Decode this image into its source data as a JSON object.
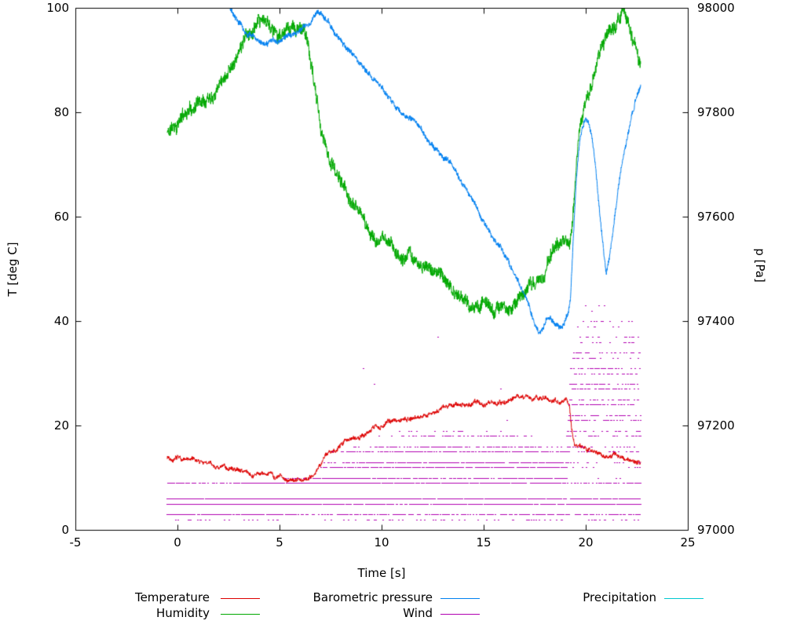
{
  "chart_data": {
    "type": "line",
    "title": "",
    "xlabel": "Time [s]",
    "ylabel_left": "T [deg C]",
    "ylabel_right": "p [Pa]",
    "x_range": [
      -5,
      25
    ],
    "y_left_range": [
      0,
      100
    ],
    "y_right_range": [
      97000,
      98000
    ],
    "x_ticks": [
      -5,
      0,
      5,
      10,
      15,
      20,
      25
    ],
    "y_left_ticks": [
      0,
      20,
      40,
      60,
      80,
      100
    ],
    "y_right_ticks": [
      97000,
      97200,
      97400,
      97600,
      97800,
      98000
    ],
    "grid": false,
    "legend_position": "bottom",
    "series": [
      {
        "name": "Temperature",
        "color": "#dd0000",
        "axis": "left",
        "style": "line",
        "seed": 7,
        "noise_jitter": 0.6,
        "noise_walk": 0.35,
        "noise_damp": 0.98,
        "points": [
          [
            -0.5,
            14.0
          ],
          [
            0,
            13.8
          ],
          [
            0.5,
            13.4
          ],
          [
            1,
            13.0
          ],
          [
            1.5,
            12.5
          ],
          [
            2,
            12.1
          ],
          [
            2.5,
            11.8
          ],
          [
            3,
            11.4
          ],
          [
            3.5,
            11.1
          ],
          [
            4,
            10.8
          ],
          [
            4.5,
            10.4
          ],
          [
            5,
            10.1
          ],
          [
            5.5,
            9.9
          ],
          [
            6,
            9.8
          ],
          [
            6.4,
            10.0
          ],
          [
            6.7,
            11.2
          ],
          [
            7,
            12.8
          ],
          [
            7.3,
            14.3
          ],
          [
            7.6,
            15.4
          ],
          [
            8,
            16.6
          ],
          [
            8.4,
            17.6
          ],
          [
            8.8,
            18.4
          ],
          [
            9.2,
            19.2
          ],
          [
            9.6,
            19.8
          ],
          [
            10,
            20.2
          ],
          [
            10.5,
            20.9
          ],
          [
            11,
            21.4
          ],
          [
            11.5,
            21.9
          ],
          [
            12,
            22.3
          ],
          [
            12.5,
            22.8
          ],
          [
            13,
            23.2
          ],
          [
            13.5,
            23.7
          ],
          [
            14,
            24.1
          ],
          [
            14.5,
            24.4
          ],
          [
            15,
            24.7
          ],
          [
            15.5,
            25.0
          ],
          [
            16,
            25.2
          ],
          [
            16.5,
            25.1
          ],
          [
            17,
            25.0
          ],
          [
            17.5,
            25.2
          ],
          [
            18,
            25.1
          ],
          [
            18.5,
            24.9
          ],
          [
            19,
            24.2
          ],
          [
            19.2,
            23.5
          ],
          [
            19.3,
            20.0
          ],
          [
            19.45,
            17.0
          ],
          [
            19.6,
            16.2
          ],
          [
            20,
            15.4
          ],
          [
            20.5,
            15.0
          ],
          [
            21,
            14.6
          ],
          [
            21.5,
            14.2
          ],
          [
            22,
            13.8
          ],
          [
            22.7,
            13.4
          ]
        ]
      },
      {
        "name": "Humidity",
        "color": "#00a800",
        "axis": "left",
        "style": "line",
        "seed": 11,
        "noise_jitter": 2.0,
        "noise_walk": 0.8,
        "noise_damp": 0.97,
        "points": [
          [
            -0.5,
            76
          ],
          [
            0,
            78
          ],
          [
            0.5,
            80.5
          ],
          [
            1,
            82.5
          ],
          [
            1.5,
            84.5
          ],
          [
            2,
            87
          ],
          [
            2.5,
            89.5
          ],
          [
            3,
            92
          ],
          [
            3.4,
            94.5
          ],
          [
            3.8,
            95.5
          ],
          [
            4.2,
            96.5
          ],
          [
            4.6,
            96
          ],
          [
            5,
            95.2
          ],
          [
            5.4,
            94.8
          ],
          [
            5.8,
            95.2
          ],
          [
            6.1,
            95.5
          ],
          [
            6.3,
            94
          ],
          [
            6.5,
            90
          ],
          [
            6.7,
            85
          ],
          [
            6.9,
            80
          ],
          [
            7.1,
            76
          ],
          [
            7.4,
            72
          ],
          [
            7.7,
            69.5
          ],
          [
            8,
            67
          ],
          [
            8.4,
            63.5
          ],
          [
            8.8,
            61
          ],
          [
            9.2,
            58.5
          ],
          [
            9.6,
            56.5
          ],
          [
            10,
            54.5
          ],
          [
            10.4,
            55
          ],
          [
            10.8,
            53
          ],
          [
            11.2,
            52
          ],
          [
            11.6,
            51.5
          ],
          [
            12,
            50.5
          ],
          [
            12.4,
            49.5
          ],
          [
            12.8,
            48.5
          ],
          [
            13.2,
            47.5
          ],
          [
            13.6,
            46
          ],
          [
            14,
            44.5
          ],
          [
            14.5,
            43
          ],
          [
            15,
            42
          ],
          [
            15.5,
            41.5
          ],
          [
            16,
            42.5
          ],
          [
            16.5,
            44
          ],
          [
            17,
            46
          ],
          [
            17.4,
            47
          ],
          [
            17.8,
            48
          ],
          [
            18.2,
            51
          ],
          [
            18.6,
            53.5
          ],
          [
            19,
            54.5
          ],
          [
            19.2,
            54
          ],
          [
            19.35,
            58
          ],
          [
            19.5,
            66
          ],
          [
            19.7,
            76
          ],
          [
            19.9,
            82
          ],
          [
            20.1,
            85
          ],
          [
            20.4,
            87.5
          ],
          [
            20.7,
            90.5
          ],
          [
            21,
            94
          ],
          [
            21.3,
            96.5
          ],
          [
            21.6,
            98
          ],
          [
            21.9,
            98.8
          ],
          [
            22.1,
            96.5
          ],
          [
            22.3,
            93
          ],
          [
            22.5,
            90.5
          ],
          [
            22.7,
            88.5
          ]
        ]
      },
      {
        "name": "Barometric pressure",
        "color": "#0080f0",
        "axis": "right",
        "style": "line",
        "seed": 23,
        "noise_jitter": 8,
        "noise_walk": 3,
        "noise_damp": 0.975,
        "points": [
          [
            -0.5,
            98060
          ],
          [
            1.5,
            98030
          ],
          [
            2.4,
            98010
          ],
          [
            2.7,
            97995
          ],
          [
            3,
            97975
          ],
          [
            3.3,
            97955
          ],
          [
            3.6,
            97945
          ],
          [
            4,
            97938
          ],
          [
            4.4,
            97932
          ],
          [
            4.8,
            97934
          ],
          [
            5.2,
            97942
          ],
          [
            5.6,
            97950
          ],
          [
            6,
            97962
          ],
          [
            6.4,
            97975
          ],
          [
            6.7,
            97988
          ],
          [
            6.9,
            97992
          ],
          [
            7.1,
            97985
          ],
          [
            7.4,
            97972
          ],
          [
            7.7,
            97958
          ],
          [
            8,
            97942
          ],
          [
            8.4,
            97922
          ],
          [
            8.8,
            97902
          ],
          [
            9.2,
            97885
          ],
          [
            9.6,
            97868
          ],
          [
            10,
            97850
          ],
          [
            10.4,
            97828
          ],
          [
            10.7,
            97808
          ],
          [
            11,
            97800
          ],
          [
            11.4,
            97792
          ],
          [
            11.8,
            97775
          ],
          [
            12.2,
            97752
          ],
          [
            12.6,
            97735
          ],
          [
            13,
            97715
          ],
          [
            13.4,
            97698
          ],
          [
            13.8,
            97672
          ],
          [
            14.2,
            97650
          ],
          [
            14.6,
            97618
          ],
          [
            15,
            97592
          ],
          [
            15.4,
            97565
          ],
          [
            15.8,
            97542
          ],
          [
            16.2,
            97512
          ],
          [
            16.6,
            97482
          ],
          [
            17,
            97448
          ],
          [
            17.3,
            97415
          ],
          [
            17.5,
            97392
          ],
          [
            17.7,
            97375
          ],
          [
            17.9,
            97382
          ],
          [
            18.1,
            97398
          ],
          [
            18.3,
            97403
          ],
          [
            18.5,
            97392
          ],
          [
            18.7,
            97385
          ],
          [
            18.9,
            97392
          ],
          [
            19.1,
            97408
          ],
          [
            19.25,
            97440
          ],
          [
            19.4,
            97560
          ],
          [
            19.55,
            97670
          ],
          [
            19.7,
            97740
          ],
          [
            19.85,
            97772
          ],
          [
            20,
            97782
          ],
          [
            20.15,
            97775
          ],
          [
            20.3,
            97745
          ],
          [
            20.5,
            97680
          ],
          [
            20.7,
            97595
          ],
          [
            20.9,
            97520
          ],
          [
            21,
            97490
          ],
          [
            21.1,
            97505
          ],
          [
            21.3,
            97560
          ],
          [
            21.5,
            97625
          ],
          [
            21.7,
            97685
          ],
          [
            21.9,
            97728
          ],
          [
            22.1,
            97765
          ],
          [
            22.3,
            97800
          ],
          [
            22.5,
            97832
          ],
          [
            22.7,
            97852
          ]
        ]
      },
      {
        "name": "Wind",
        "color": "#b000b0",
        "axis": "left",
        "style": "dots",
        "seed": 5,
        "levels": [
          2,
          3,
          5,
          6,
          9,
          10,
          12,
          13,
          15,
          16,
          18,
          19,
          21,
          22,
          24,
          25,
          27,
          28,
          30,
          31,
          33,
          34,
          36,
          37,
          39,
          40,
          42,
          43,
          45
        ],
        "amplitude": [
          [
            -0.5,
            3.5
          ],
          [
            6.5,
            4
          ],
          [
            7.5,
            5.5
          ],
          [
            9,
            6.5
          ],
          [
            16,
            7
          ],
          [
            18.5,
            5.5
          ],
          [
            19.1,
            4.5
          ],
          [
            19.35,
            16
          ],
          [
            20,
            18
          ],
          [
            22.7,
            17
          ]
        ],
        "points": [
          [
            -0.5,
            5.5
          ],
          [
            3,
            5.5
          ],
          [
            5,
            6
          ],
          [
            6.5,
            6.5
          ],
          [
            7.5,
            9
          ],
          [
            8.5,
            11
          ],
          [
            10,
            12
          ],
          [
            12,
            13
          ],
          [
            14,
            13
          ],
          [
            16,
            12.5
          ],
          [
            18,
            12
          ],
          [
            19,
            11
          ],
          [
            19.35,
            24
          ],
          [
            20,
            27
          ],
          [
            21,
            26
          ],
          [
            22,
            25
          ],
          [
            22.7,
            23
          ]
        ]
      },
      {
        "name": "Precipitation",
        "color": "#00c8d0",
        "axis": "left",
        "style": "line",
        "seed": 3,
        "points": []
      }
    ]
  }
}
